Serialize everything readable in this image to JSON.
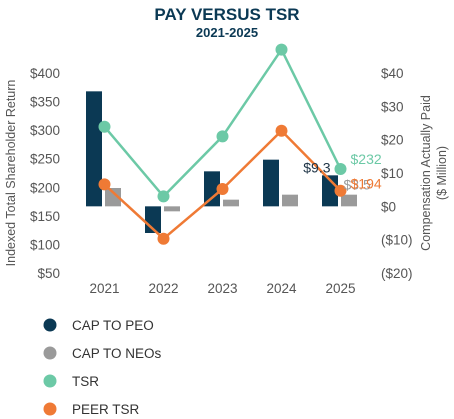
{
  "chart_data": {
    "type": "bar",
    "title": "PAY VERSUS TSR",
    "subtitle": "2021-2025",
    "categories": [
      "2021",
      "2022",
      "2023",
      "2024",
      "2025"
    ],
    "ylabel_left": "Indexed Total Shareholder Return",
    "ylabel_right_line1": "Compensation Actually Paid",
    "ylabel_right_line2": "($ Million)",
    "y_left_ticks": [
      "$400",
      "$350",
      "$300",
      "$250",
      "$200",
      "$150",
      "$100",
      "$50"
    ],
    "y_left_lim": [
      50,
      400
    ],
    "y_right_ticks": [
      "$40",
      "$30",
      "$20",
      "$10",
      "$0",
      "($10)",
      "($20)"
    ],
    "y_right_lim": [
      -20,
      40
    ],
    "grid": false,
    "legend_position": "bottom-left",
    "series": [
      {
        "name": "CAP TO PEO",
        "kind": "bar",
        "axis": "right",
        "color": "#0b3954",
        "values": [
          34.5,
          -8,
          10.5,
          14,
          9.3
        ]
      },
      {
        "name": "CAP TO NEOs",
        "kind": "bar",
        "axis": "right",
        "color": "#9a9a9a",
        "values": [
          5.5,
          -1.5,
          2,
          3.5,
          3.5
        ]
      },
      {
        "name": "TSR",
        "kind": "line",
        "axis": "left",
        "color": "#6cc9a6",
        "values": [
          306,
          184,
          289,
          441,
          232
        ]
      },
      {
        "name": "PEER TSR",
        "kind": "line",
        "axis": "left",
        "color": "#ef7a35",
        "values": [
          205,
          110,
          197,
          299,
          194
        ]
      }
    ],
    "annotations": [
      {
        "text": "$9.3",
        "series": "CAP TO PEO",
        "category": "2025",
        "color": "#1d3345"
      },
      {
        "text": "$3.5",
        "series": "CAP TO NEOs",
        "category": "2025",
        "color": "#9a9a9a"
      },
      {
        "text": "$232",
        "series": "TSR",
        "category": "2025",
        "color": "#6cc9a6"
      },
      {
        "text": "$194",
        "series": "PEER TSR",
        "category": "2025",
        "color": "#ef7a35"
      }
    ]
  }
}
